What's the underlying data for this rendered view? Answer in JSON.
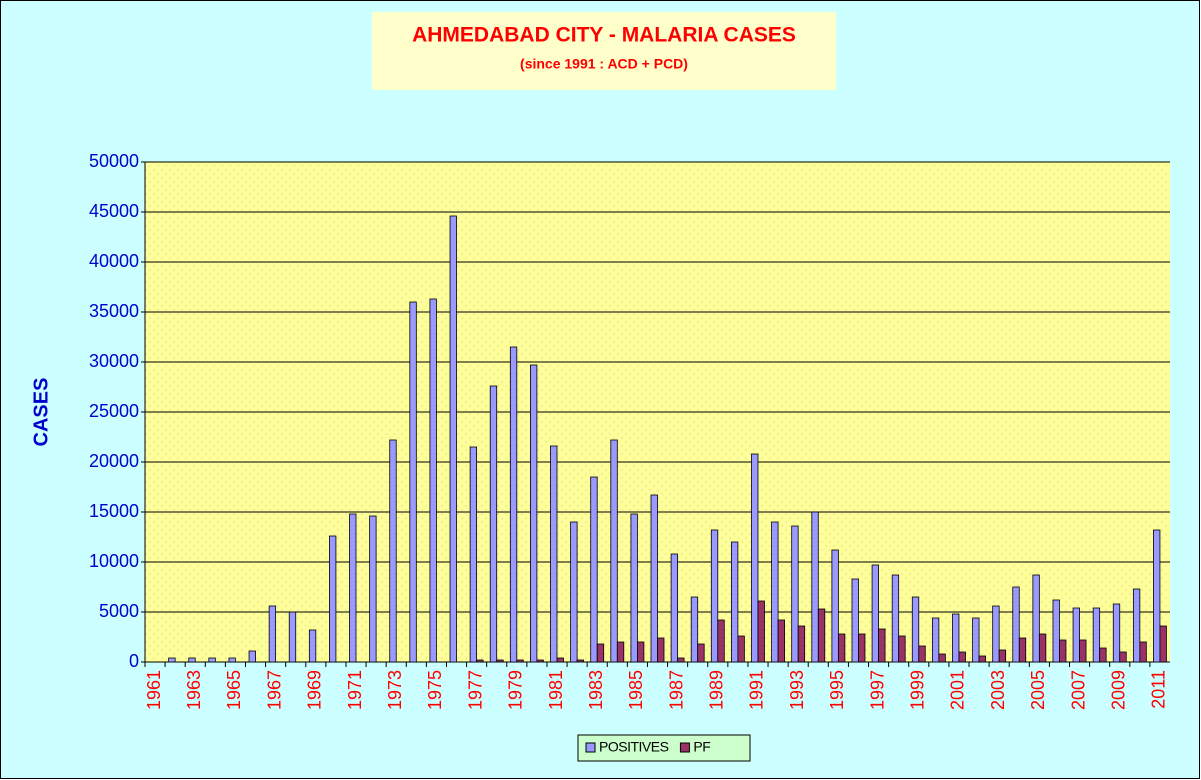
{
  "chart_data": {
    "type": "bar",
    "title": "AHMEDABAD CITY - MALARIA CASES",
    "subtitle": "(since 1991 :  ACD + PCD)",
    "ylabel": "CASES",
    "categories": [
      "1961",
      null,
      "1963",
      null,
      "1965",
      null,
      "1967",
      null,
      "1969",
      null,
      "1971",
      null,
      "1973",
      null,
      "1975",
      null,
      "1977",
      null,
      "1979",
      null,
      "1981",
      null,
      "1983",
      null,
      "1985",
      null,
      "1987",
      null,
      "1989",
      null,
      "1991",
      null,
      "1993",
      null,
      "1995",
      null,
      "1997",
      null,
      "1999",
      null,
      "2001",
      null,
      "2003",
      null,
      "2005",
      null,
      "2007",
      null,
      "2009",
      null,
      "2011"
    ],
    "series": [
      {
        "name": "POSITIVES",
        "color": "#9999ff",
        "values": [
          0,
          400,
          400,
          400,
          400,
          1100,
          5600,
          5000,
          3200,
          12600,
          14800,
          14600,
          22200,
          36000,
          36300,
          44600,
          21500,
          27600,
          31500,
          29700,
          21600,
          14000,
          18500,
          22200,
          14800,
          16700,
          10800,
          6500,
          13200,
          12000,
          20800,
          14000,
          13600,
          15000,
          11200,
          8300,
          9700,
          8700,
          6500,
          4400,
          4800,
          4400,
          5600,
          7500,
          8700,
          6200,
          5400,
          5400,
          5800,
          7300,
          13200
        ]
      },
      {
        "name": "PF",
        "color": "#993366",
        "values": [
          0,
          0,
          0,
          0,
          0,
          0,
          0,
          0,
          0,
          0,
          0,
          0,
          0,
          0,
          0,
          0,
          200,
          200,
          200,
          200,
          400,
          200,
          1800,
          2000,
          2000,
          2400,
          400,
          1800,
          4200,
          2600,
          6100,
          4200,
          3600,
          5300,
          2800,
          2800,
          3300,
          2600,
          1600,
          800,
          1000,
          600,
          1200,
          2400,
          2800,
          2200,
          2200,
          1400,
          1000,
          2000,
          3600
        ]
      }
    ],
    "ylim": [
      0,
      50000
    ],
    "yticks": [
      0,
      5000,
      10000,
      15000,
      20000,
      25000,
      30000,
      35000,
      40000,
      45000,
      50000
    ],
    "grid": true,
    "legend": "bottom"
  }
}
